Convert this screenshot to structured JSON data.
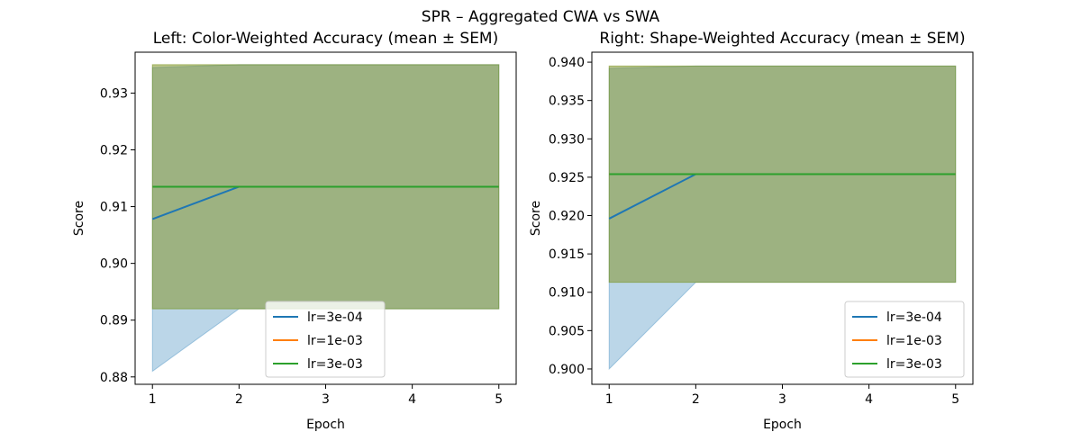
{
  "figure": {
    "suptitle": "SPR – Aggregated CWA vs SWA"
  },
  "chart_data": [
    {
      "type": "line",
      "title": "Left: Color-Weighted Accuracy (mean ± SEM)",
      "xlabel": "Epoch",
      "ylabel": "Score",
      "xlim": [
        0.8,
        5.2
      ],
      "ylim": [
        0.8787,
        0.9372
      ],
      "xticks": [
        1,
        2,
        3,
        4,
        5
      ],
      "yticks": [
        0.88,
        0.89,
        0.9,
        0.91,
        0.92,
        0.93
      ],
      "ytick_labels": [
        "0.88",
        "0.89",
        "0.90",
        "0.91",
        "0.92",
        "0.93"
      ],
      "legend_position": "lower center",
      "grid": false,
      "series": [
        {
          "name": "lr=3e-04",
          "color": "#1f77b4",
          "x": [
            1,
            2,
            3,
            4,
            5
          ],
          "mean": [
            0.9078,
            0.9135,
            0.9135,
            0.9135,
            0.9135
          ],
          "lower": [
            0.881,
            0.892,
            0.892,
            0.892,
            0.892
          ],
          "upper": [
            0.9345,
            0.935,
            0.935,
            0.935,
            0.935
          ]
        },
        {
          "name": "lr=1e-03",
          "color": "#ff7f0e",
          "x": [
            1,
            2,
            3,
            4,
            5
          ],
          "mean": [
            0.9135,
            0.9135,
            0.9135,
            0.9135,
            0.9135
          ],
          "lower": [
            0.892,
            0.892,
            0.892,
            0.892,
            0.892
          ],
          "upper": [
            0.935,
            0.935,
            0.935,
            0.935,
            0.935
          ]
        },
        {
          "name": "lr=3e-03",
          "color": "#2ca02c",
          "x": [
            1,
            2,
            3,
            4,
            5
          ],
          "mean": [
            0.9135,
            0.9135,
            0.9135,
            0.9135,
            0.9135
          ],
          "lower": [
            0.892,
            0.892,
            0.892,
            0.892,
            0.892
          ],
          "upper": [
            0.935,
            0.935,
            0.935,
            0.935,
            0.935
          ]
        }
      ]
    },
    {
      "type": "line",
      "title": "Right: Shape-Weighted Accuracy (mean ± SEM)",
      "xlabel": "Epoch",
      "ylabel": "Score",
      "xlim": [
        0.8,
        5.2
      ],
      "ylim": [
        0.898,
        0.9413
      ],
      "xticks": [
        1,
        2,
        3,
        4,
        5
      ],
      "yticks": [
        0.9,
        0.905,
        0.91,
        0.915,
        0.92,
        0.925,
        0.93,
        0.935,
        0.94
      ],
      "ytick_labels": [
        "0.900",
        "0.905",
        "0.910",
        "0.915",
        "0.920",
        "0.925",
        "0.930",
        "0.935",
        "0.940"
      ],
      "legend_position": "lower right",
      "grid": false,
      "series": [
        {
          "name": "lr=3e-04",
          "color": "#1f77b4",
          "x": [
            1,
            2,
            3,
            4,
            5
          ],
          "mean": [
            0.9196,
            0.9254,
            0.9254,
            0.9254,
            0.9254
          ],
          "lower": [
            0.9,
            0.9113,
            0.9113,
            0.9113,
            0.9113
          ],
          "upper": [
            0.9392,
            0.9395,
            0.9395,
            0.9395,
            0.9395
          ]
        },
        {
          "name": "lr=1e-03",
          "color": "#ff7f0e",
          "x": [
            1,
            2,
            3,
            4,
            5
          ],
          "mean": [
            0.9254,
            0.9254,
            0.9254,
            0.9254,
            0.9254
          ],
          "lower": [
            0.9113,
            0.9113,
            0.9113,
            0.9113,
            0.9113
          ],
          "upper": [
            0.9395,
            0.9395,
            0.9395,
            0.9395,
            0.9395
          ]
        },
        {
          "name": "lr=3e-03",
          "color": "#2ca02c",
          "x": [
            1,
            2,
            3,
            4,
            5
          ],
          "mean": [
            0.9254,
            0.9254,
            0.9254,
            0.9254,
            0.9254
          ],
          "lower": [
            0.9113,
            0.9113,
            0.9113,
            0.9113,
            0.9113
          ],
          "upper": [
            0.9395,
            0.9395,
            0.9395,
            0.9395,
            0.9395
          ]
        }
      ]
    }
  ]
}
